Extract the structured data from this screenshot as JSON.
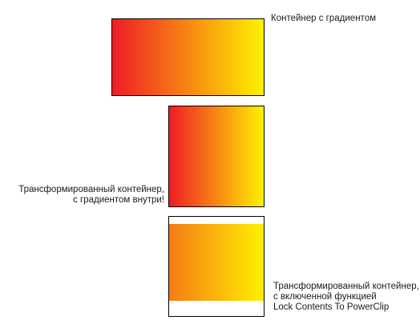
{
  "colors": {
    "gradient_start": "#ee1c25",
    "gradient_end": "#fff200",
    "border": "#000000"
  },
  "labels": {
    "original": {
      "lines": [
        "Контейнер с градиентом"
      ]
    },
    "transformed": {
      "lines": [
        "Трансформированный контейнер,",
        "с градиентом внутри!"
      ]
    },
    "locked": {
      "lines": [
        "Трансформированный контейнер,",
        "с включенной функцией",
        "Lock Contents To PowerClip"
      ]
    }
  }
}
